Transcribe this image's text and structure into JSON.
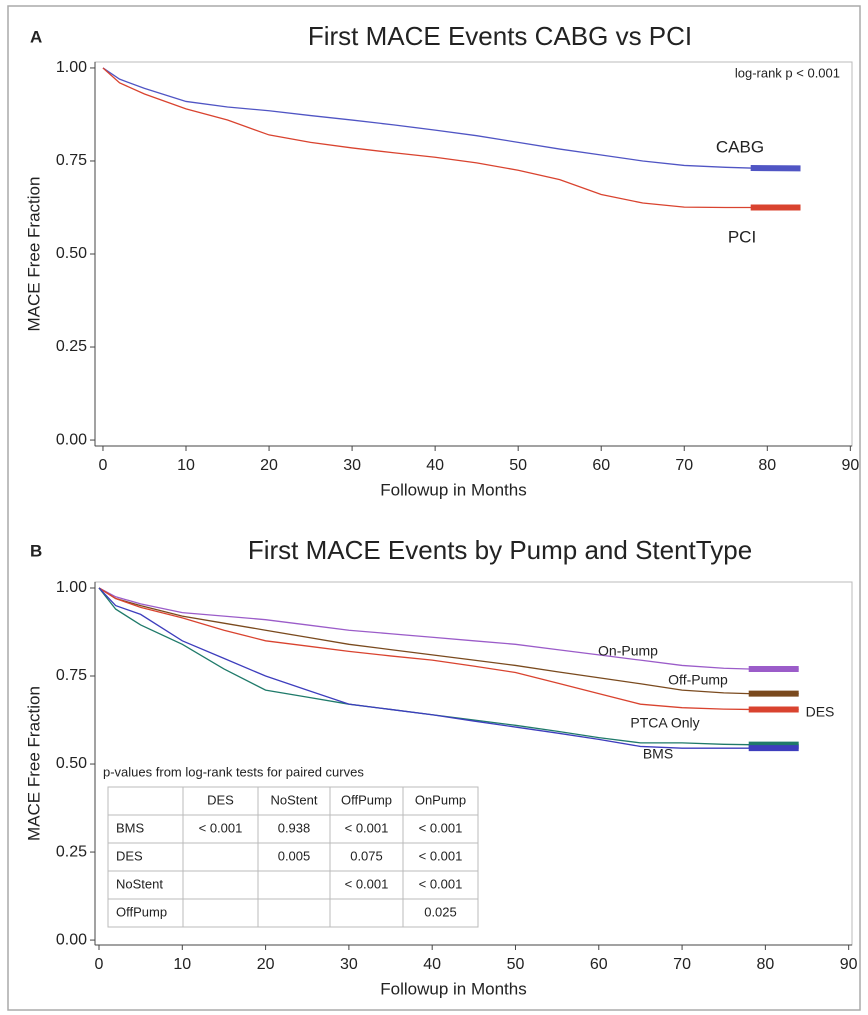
{
  "chart_data": [
    {
      "type": "line",
      "panel": "A",
      "title": "First MACE Events CABG vs PCI",
      "x_label": "Followup in Months",
      "y_label": "MACE Free Fraction",
      "annotation": "log-rank p < 0.001",
      "x": [
        0,
        2,
        5,
        10,
        15,
        20,
        25,
        30,
        35,
        40,
        45,
        50,
        55,
        60,
        65,
        70,
        75,
        78,
        84
      ],
      "series": [
        {
          "name": "CABG",
          "color": "#5055c4",
          "values": [
            1.0,
            0.97,
            0.945,
            0.91,
            0.895,
            0.885,
            0.872,
            0.86,
            0.847,
            0.833,
            0.818,
            0.8,
            0.782,
            0.766,
            0.75,
            0.738,
            0.733,
            0.731,
            0.73
          ]
        },
        {
          "name": "PCI",
          "color": "#d9432f",
          "values": [
            1.0,
            0.96,
            0.93,
            0.89,
            0.86,
            0.82,
            0.8,
            0.785,
            0.772,
            0.76,
            0.745,
            0.725,
            0.7,
            0.66,
            0.637,
            0.626,
            0.625,
            0.625,
            0.625
          ]
        }
      ],
      "xlim": [
        -0.96,
        90.2
      ],
      "ylim": [
        -0.016,
        1.016
      ],
      "xticks": [
        0,
        10,
        20,
        30,
        40,
        50,
        60,
        70,
        80,
        90
      ],
      "yticks": [
        {
          "value": 0,
          "label": "0.00"
        },
        0.25,
        {
          "value": 0.5,
          "label": "0.50"
        },
        0.75,
        {
          "value": 1,
          "label": "1.00"
        }
      ]
    },
    {
      "type": "line",
      "panel": "B",
      "title": "First MACE Events by Pump and StentType",
      "x_label": "Followup in Months",
      "y_label": "MACE Free Fraction",
      "x": [
        0,
        2,
        5,
        10,
        15,
        20,
        25,
        30,
        35,
        40,
        45,
        50,
        55,
        60,
        65,
        70,
        75,
        78,
        84
      ],
      "series": [
        {
          "name": "On-Pump",
          "color": "#9b5cc9",
          "values": [
            1.0,
            0.975,
            0.955,
            0.93,
            0.92,
            0.91,
            0.895,
            0.88,
            0.87,
            0.86,
            0.85,
            0.84,
            0.825,
            0.81,
            0.795,
            0.78,
            0.772,
            0.77,
            0.77
          ]
        },
        {
          "name": "Off-Pump",
          "color": "#7a4a1e",
          "values": [
            1.0,
            0.97,
            0.95,
            0.92,
            0.9,
            0.88,
            0.86,
            0.84,
            0.825,
            0.81,
            0.795,
            0.78,
            0.762,
            0.745,
            0.728,
            0.71,
            0.702,
            0.7,
            0.7
          ]
        },
        {
          "name": "DES",
          "color": "#d9432f",
          "values": [
            1.0,
            0.97,
            0.945,
            0.915,
            0.88,
            0.85,
            0.835,
            0.82,
            0.807,
            0.795,
            0.778,
            0.76,
            0.73,
            0.7,
            0.67,
            0.66,
            0.656,
            0.655,
            0.655
          ]
        },
        {
          "name": "PTCA Only",
          "color": "#1f7a6a",
          "values": [
            1.0,
            0.94,
            0.895,
            0.84,
            0.77,
            0.71,
            0.69,
            0.67,
            0.655,
            0.64,
            0.625,
            0.61,
            0.593,
            0.575,
            0.56,
            0.56,
            0.556,
            0.555,
            0.555
          ]
        },
        {
          "name": "BMS",
          "color": "#3d3dbd",
          "values": [
            1.0,
            0.95,
            0.925,
            0.85,
            0.8,
            0.75,
            0.71,
            0.67,
            0.655,
            0.64,
            0.622,
            0.605,
            0.588,
            0.57,
            0.55,
            0.545,
            0.545,
            0.545,
            0.545
          ]
        }
      ],
      "xlim": [
        -0.48,
        90.4
      ],
      "ylim": [
        -0.014,
        1.017
      ],
      "xticks": [
        0,
        10,
        20,
        30,
        40,
        50,
        60,
        70,
        80,
        90
      ],
      "yticks": [
        {
          "value": 0,
          "label": "0.00"
        },
        0.25,
        {
          "value": 0.5,
          "label": "0.50"
        },
        0.75,
        {
          "value": 1,
          "label": "1.00"
        }
      ],
      "table": {
        "title": "p-values from log-rank tests for paired curves",
        "columns": [
          "DES",
          "NoStent",
          "OffPump",
          "OnPump"
        ],
        "rows": [
          {
            "label": "BMS",
            "cells": [
              "< 0.001",
              "0.938",
              "< 0.001",
              "< 0.001"
            ]
          },
          {
            "label": "DES",
            "cells": [
              null,
              "0.005",
              "0.075",
              "< 0.001"
            ]
          },
          {
            "label": "NoStent",
            "cells": [
              null,
              null,
              "< 0.001",
              "< 0.001"
            ]
          },
          {
            "label": "OffPump",
            "cells": [
              null,
              null,
              null,
              "0.025"
            ]
          }
        ]
      }
    }
  ]
}
